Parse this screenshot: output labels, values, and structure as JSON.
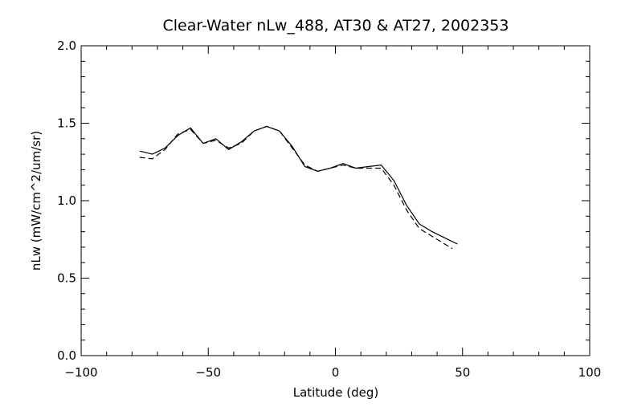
{
  "chart_data": {
    "type": "line",
    "title": "Clear-Water nLw_488, AT30 & AT27, 2002353",
    "xlabel": "Latitude (deg)",
    "ylabel": "nLw (mW/cm^2/um/sr)",
    "xlim": [
      -100,
      100
    ],
    "ylim": [
      0.0,
      2.0
    ],
    "grid": false,
    "x_ticks": [
      -100,
      -50,
      0,
      50,
      100
    ],
    "x_tick_labels": [
      "−100",
      "−50",
      "0",
      "50",
      "100"
    ],
    "y_ticks": [
      0.0,
      0.5,
      1.0,
      1.5,
      2.0
    ],
    "y_tick_labels": [
      "0.0",
      "0.5",
      "1.0",
      "1.5",
      "2.0"
    ],
    "series": [
      {
        "style": "solid",
        "color": "#000000",
        "x": [
          -77,
          -72,
          -67,
          -62,
          -57,
          -52,
          -47,
          -42,
          -37,
          -32,
          -27,
          -22,
          -17,
          -12,
          -7,
          -2,
          3,
          8,
          13,
          18,
          23,
          28,
          33,
          38,
          43,
          48
        ],
        "y": [
          1.32,
          1.3,
          1.34,
          1.42,
          1.47,
          1.37,
          1.4,
          1.33,
          1.38,
          1.45,
          1.48,
          1.45,
          1.35,
          1.22,
          1.19,
          1.21,
          1.24,
          1.21,
          1.22,
          1.23,
          1.13,
          0.97,
          0.85,
          0.8,
          0.76,
          0.72
        ]
      },
      {
        "style": "dashed",
        "color": "#000000",
        "x": [
          -77,
          -72,
          -67,
          -62,
          -57,
          -52,
          -47,
          -42,
          -37,
          -32,
          -27,
          -22,
          -17,
          -12,
          -7,
          -2,
          3,
          8,
          13,
          18,
          23,
          28,
          33,
          38,
          43,
          46
        ],
        "y": [
          1.28,
          1.27,
          1.33,
          1.43,
          1.46,
          1.37,
          1.39,
          1.34,
          1.37,
          1.45,
          1.48,
          1.45,
          1.34,
          1.23,
          1.19,
          1.21,
          1.23,
          1.21,
          1.21,
          1.21,
          1.1,
          0.94,
          0.82,
          0.77,
          0.72,
          0.69
        ]
      }
    ]
  }
}
